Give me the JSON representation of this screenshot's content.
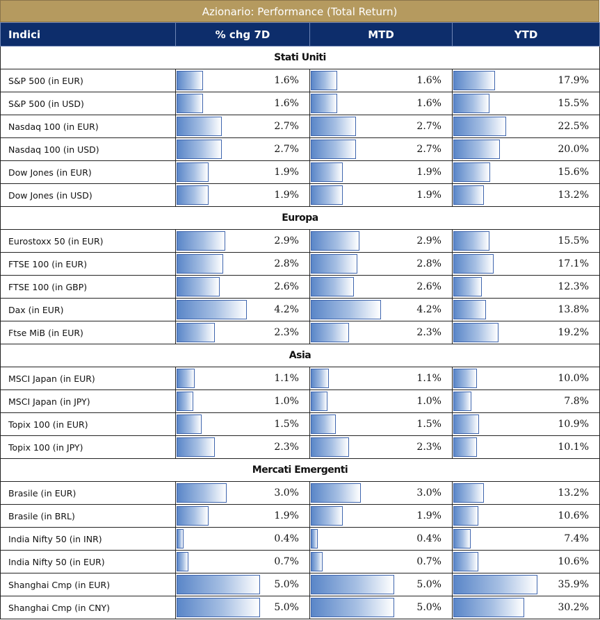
{
  "title": "Azionario: Performance (Total Return)",
  "headers": [
    "Indici",
    "% chg 7D",
    "MTD",
    "YTD"
  ],
  "colors": {
    "title_bg": "#b59a5f",
    "header_bg": "#0d2d6b",
    "bar_border": "#3d64ad",
    "bar_fill": "#5a86c8"
  },
  "sections": [
    {
      "name": "Stati Uniti",
      "rows": [
        {
          "name": "S&P 500 (in EUR)",
          "d7": 1.6,
          "mtd": 1.6,
          "ytd": 17.9
        },
        {
          "name": "S&P 500 (in USD)",
          "d7": 1.6,
          "mtd": 1.6,
          "ytd": 15.5
        },
        {
          "name": "Nasdaq 100 (in EUR)",
          "d7": 2.7,
          "mtd": 2.7,
          "ytd": 22.5
        },
        {
          "name": "Nasdaq 100 (in USD)",
          "d7": 2.7,
          "mtd": 2.7,
          "ytd": 20.0
        },
        {
          "name": "Dow Jones (in EUR)",
          "d7": 1.9,
          "mtd": 1.9,
          "ytd": 15.6
        },
        {
          "name": "Dow Jones (in USD)",
          "d7": 1.9,
          "mtd": 1.9,
          "ytd": 13.2
        }
      ]
    },
    {
      "name": "Europa",
      "rows": [
        {
          "name": "Eurostoxx 50 (in EUR)",
          "d7": 2.9,
          "mtd": 2.9,
          "ytd": 15.5
        },
        {
          "name": "FTSE 100 (in EUR)",
          "d7": 2.8,
          "mtd": 2.8,
          "ytd": 17.1
        },
        {
          "name": "FTSE 100 (in GBP)",
          "d7": 2.6,
          "mtd": 2.6,
          "ytd": 12.3
        },
        {
          "name": "Dax (in EUR)",
          "d7": 4.2,
          "mtd": 4.2,
          "ytd": 13.8
        },
        {
          "name": "Ftse MiB (in EUR)",
          "d7": 2.3,
          "mtd": 2.3,
          "ytd": 19.2
        }
      ]
    },
    {
      "name": "Asia",
      "rows": [
        {
          "name": "MSCI Japan (in EUR)",
          "d7": 1.1,
          "mtd": 1.1,
          "ytd": 10.0
        },
        {
          "name": "MSCI Japan (in JPY)",
          "d7": 1.0,
          "mtd": 1.0,
          "ytd": 7.8
        },
        {
          "name": "Topix 100 (in EUR)",
          "d7": 1.5,
          "mtd": 1.5,
          "ytd": 10.9
        },
        {
          "name": "Topix 100 (in JPY)",
          "d7": 2.3,
          "mtd": 2.3,
          "ytd": 10.1
        }
      ]
    },
    {
      "name": "Mercati Emergenti",
      "rows": [
        {
          "name": "Brasile (in EUR)",
          "d7": 3.0,
          "mtd": 3.0,
          "ytd": 13.2
        },
        {
          "name": "Brasile (in BRL)",
          "d7": 1.9,
          "mtd": 1.9,
          "ytd": 10.6
        },
        {
          "name": "India Nifty 50 (in INR)",
          "d7": 0.4,
          "mtd": 0.4,
          "ytd": 7.4
        },
        {
          "name": "India Nifty 50 (in EUR)",
          "d7": 0.7,
          "mtd": 0.7,
          "ytd": 10.6
        },
        {
          "name": "Shanghai Cmp (in EUR)",
          "d7": 5.0,
          "mtd": 5.0,
          "ytd": 35.9
        },
        {
          "name": "Shanghai Cmp (in CNY)",
          "d7": 5.0,
          "mtd": 5.0,
          "ytd": 30.2
        }
      ]
    }
  ]
}
